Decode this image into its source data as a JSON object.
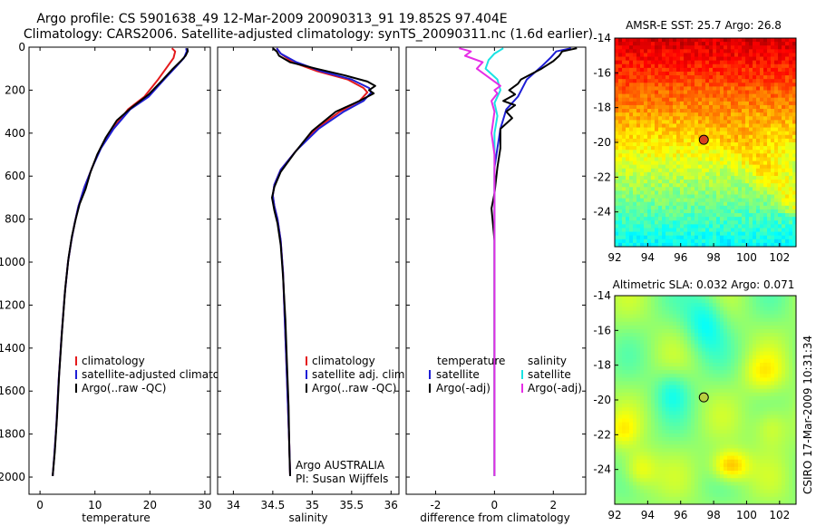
{
  "header": {
    "line1": "Argo profile: CS 5901638_49 12-Mar-2009 20090313_91 19.852S 97.404E",
    "line2": "Climatology: CARS2006. Satellite-adjusted climatology: synTS_20090311.nc (1.6d earlier)"
  },
  "depth_axis": {
    "ticks": [
      "0",
      "200",
      "400",
      "600",
      "800",
      "1000",
      "1200",
      "1400",
      "1600",
      "1800",
      "2000"
    ]
  },
  "colors": {
    "climatology": "#e41a1c",
    "satellite": "#1f1fd6",
    "argo": "#000000",
    "sal_satellite": "#19e3e3",
    "sal_argo": "#e62ee6"
  },
  "chart_data": [
    {
      "type": "line",
      "id": "temperature",
      "xlabel": "temperature",
      "xlim": [
        -2,
        31
      ],
      "ylim": [
        0,
        2080
      ],
      "xticks": [
        "0",
        "10",
        "20",
        "30"
      ],
      "legend": {
        "items": [
          "climatology",
          "satellite-adjusted climatology",
          "Argo(..raw -QC)"
        ]
      },
      "series": [
        {
          "name": "climatology",
          "color_key": "climatology",
          "points": [
            [
              24.0,
              5
            ],
            [
              24.6,
              20
            ],
            [
              24.3,
              50
            ],
            [
              23.2,
              90
            ],
            [
              21.5,
              150
            ],
            [
              19.0,
              230
            ],
            [
              16.0,
              290
            ],
            [
              13.2,
              380
            ],
            [
              11.0,
              470
            ],
            [
              9.5,
              560
            ],
            [
              8.1,
              650
            ],
            [
              7.0,
              740
            ],
            [
              6.3,
              820
            ],
            [
              5.7,
              900
            ],
            [
              5.1,
              1000
            ],
            [
              4.5,
              1150
            ],
            [
              3.9,
              1350
            ],
            [
              3.4,
              1550
            ],
            [
              3.0,
              1750
            ],
            [
              2.6,
              1900
            ],
            [
              2.3,
              1995
            ]
          ]
        },
        {
          "name": "satellite-adjusted climatology",
          "color_key": "satellite",
          "points": [
            [
              26.6,
              5
            ],
            [
              26.7,
              20
            ],
            [
              26.2,
              50
            ],
            [
              24.8,
              90
            ],
            [
              22.6,
              150
            ],
            [
              19.8,
              230
            ],
            [
              16.4,
              290
            ],
            [
              13.4,
              380
            ],
            [
              11.1,
              470
            ],
            [
              9.5,
              560
            ],
            [
              8.1,
              650
            ],
            [
              7.0,
              740
            ],
            [
              6.3,
              820
            ],
            [
              5.7,
              900
            ],
            [
              5.1,
              1000
            ],
            [
              4.5,
              1150
            ],
            [
              3.9,
              1350
            ],
            [
              3.4,
              1550
            ],
            [
              3.0,
              1750
            ],
            [
              2.6,
              1900
            ],
            [
              2.3,
              1995
            ]
          ]
        },
        {
          "name": "Argo(..raw -QC)",
          "color_key": "argo",
          "points": [
            [
              26.8,
              5
            ],
            [
              26.9,
              18
            ],
            [
              26.5,
              40
            ],
            [
              25.6,
              65
            ],
            [
              24.2,
              100
            ],
            [
              22.4,
              150
            ],
            [
              19.8,
              220
            ],
            [
              16.7,
              280
            ],
            [
              14.0,
              340
            ],
            [
              12.0,
              420
            ],
            [
              10.4,
              500
            ],
            [
              9.2,
              580
            ],
            [
              8.3,
              660
            ],
            [
              7.2,
              730
            ],
            [
              6.5,
              800
            ],
            [
              5.8,
              880
            ],
            [
              5.2,
              980
            ],
            [
              4.6,
              1120
            ],
            [
              4.0,
              1320
            ],
            [
              3.5,
              1520
            ],
            [
              3.1,
              1720
            ],
            [
              2.7,
              1880
            ],
            [
              2.3,
              1995
            ]
          ]
        }
      ]
    },
    {
      "type": "line",
      "id": "salinity",
      "xlabel": "salinity",
      "xlim": [
        33.8,
        36.1
      ],
      "ylim": [
        0,
        2080
      ],
      "xticks": [
        "34",
        "34.5",
        "35",
        "35.5",
        "36"
      ],
      "legend": {
        "items": [
          "climatology",
          "satellite adj. clim.",
          "Argo(..raw -QC)"
        ]
      },
      "annotation": [
        "Argo AUSTRALIA",
        "PI: Susan Wijffels"
      ],
      "series": [
        {
          "name": "climatology",
          "color_key": "climatology",
          "points": [
            [
              34.55,
              5
            ],
            [
              34.6,
              30
            ],
            [
              34.75,
              70
            ],
            [
              35.05,
              110
            ],
            [
              35.45,
              150
            ],
            [
              35.65,
              190
            ],
            [
              35.7,
              210
            ],
            [
              35.6,
              250
            ],
            [
              35.35,
              300
            ],
            [
              35.05,
              380
            ],
            [
              34.8,
              480
            ],
            [
              34.6,
              570
            ],
            [
              34.52,
              640
            ],
            [
              34.5,
              690
            ],
            [
              34.52,
              740
            ],
            [
              34.56,
              800
            ],
            [
              34.6,
              900
            ],
            [
              34.63,
              1050
            ],
            [
              34.65,
              1250
            ],
            [
              34.67,
              1450
            ],
            [
              34.69,
              1650
            ],
            [
              34.71,
              1850
            ],
            [
              34.72,
              1995
            ]
          ]
        },
        {
          "name": "satellite adj. clim.",
          "color_key": "satellite",
          "points": [
            [
              34.55,
              5
            ],
            [
              34.6,
              30
            ],
            [
              34.8,
              70
            ],
            [
              35.1,
              110
            ],
            [
              35.5,
              150
            ],
            [
              35.72,
              190
            ],
            [
              35.75,
              210
            ],
            [
              35.65,
              250
            ],
            [
              35.4,
              300
            ],
            [
              35.08,
              380
            ],
            [
              34.8,
              480
            ],
            [
              34.6,
              570
            ],
            [
              34.52,
              640
            ],
            [
              34.5,
              690
            ],
            [
              34.52,
              740
            ],
            [
              34.56,
              800
            ],
            [
              34.6,
              900
            ],
            [
              34.63,
              1050
            ],
            [
              34.65,
              1250
            ],
            [
              34.67,
              1450
            ],
            [
              34.69,
              1650
            ],
            [
              34.71,
              1850
            ],
            [
              34.72,
              1995
            ]
          ]
        },
        {
          "name": "Argo(..raw -QC)",
          "color_key": "argo",
          "points": [
            [
              34.5,
              5
            ],
            [
              34.55,
              20
            ],
            [
              34.58,
              40
            ],
            [
              34.72,
              70
            ],
            [
              35.05,
              100
            ],
            [
              35.4,
              130
            ],
            [
              35.7,
              160
            ],
            [
              35.8,
              180
            ],
            [
              35.72,
              200
            ],
            [
              35.78,
              215
            ],
            [
              35.6,
              250
            ],
            [
              35.3,
              300
            ],
            [
              35.0,
              390
            ],
            [
              34.78,
              490
            ],
            [
              34.6,
              580
            ],
            [
              34.52,
              650
            ],
            [
              34.49,
              700
            ],
            [
              34.52,
              760
            ],
            [
              34.56,
              820
            ],
            [
              34.6,
              920
            ],
            [
              34.63,
              1070
            ],
            [
              34.66,
              1270
            ],
            [
              34.68,
              1470
            ],
            [
              34.7,
              1670
            ],
            [
              34.71,
              1870
            ],
            [
              34.72,
              1995
            ]
          ]
        }
      ]
    },
    {
      "type": "line",
      "id": "difference",
      "xlabel": "difference from climatology",
      "xlim": [
        -3,
        3.1
      ],
      "ylim": [
        0,
        2080
      ],
      "xticks": [
        "-2",
        "0",
        "2"
      ],
      "legend": {
        "temperature_heading": "temperature",
        "salinity_heading": "salinity",
        "temperature_items": [
          "satellite",
          "Argo(-adj)"
        ],
        "salinity_items": [
          "satellite",
          "Argo(-adj)"
        ]
      },
      "series": [
        {
          "name": "temperature satellite",
          "color_key": "satellite",
          "points": [
            [
              2.6,
              5
            ],
            [
              2.1,
              20
            ],
            [
              1.9,
              50
            ],
            [
              1.6,
              90
            ],
            [
              1.1,
              150
            ],
            [
              0.8,
              230
            ],
            [
              0.4,
              290
            ],
            [
              0.2,
              380
            ],
            [
              0.1,
              470
            ],
            [
              0.0,
              560
            ],
            [
              0.0,
              700
            ],
            [
              0.0,
              1000
            ],
            [
              0.0,
              1500
            ],
            [
              0.0,
              1995
            ]
          ]
        },
        {
          "name": "temperature Argo(-adj)",
          "color_key": "argo",
          "points": [
            [
              2.8,
              5
            ],
            [
              2.3,
              20
            ],
            [
              2.2,
              40
            ],
            [
              2.0,
              65
            ],
            [
              1.6,
              100
            ],
            [
              0.9,
              150
            ],
            [
              0.8,
              170
            ],
            [
              0.5,
              200
            ],
            [
              0.7,
              220
            ],
            [
              0.3,
              250
            ],
            [
              0.7,
              270
            ],
            [
              0.4,
              300
            ],
            [
              0.6,
              330
            ],
            [
              0.2,
              380
            ],
            [
              0.2,
              470
            ],
            [
              0.1,
              560
            ],
            [
              0.0,
              680
            ],
            [
              -0.1,
              750
            ],
            [
              0.0,
              900
            ],
            [
              0.0,
              1200
            ],
            [
              0.0,
              1600
            ],
            [
              0.0,
              1995
            ]
          ]
        },
        {
          "name": "salinity satellite",
          "color_key": "sal_satellite",
          "points": [
            [
              0.3,
              5
            ],
            [
              0.0,
              30
            ],
            [
              -0.2,
              60
            ],
            [
              -0.3,
              100
            ],
            [
              0.1,
              150
            ],
            [
              0.2,
              200
            ],
            [
              0.0,
              260
            ],
            [
              0.1,
              320
            ],
            [
              0.0,
              400
            ],
            [
              0.0,
              600
            ],
            [
              0.0,
              1000
            ],
            [
              0.0,
              1500
            ],
            [
              0.0,
              1995
            ]
          ]
        },
        {
          "name": "salinity Argo(-adj)",
          "color_key": "sal_argo",
          "points": [
            [
              -1.2,
              5
            ],
            [
              -0.8,
              20
            ],
            [
              -1.0,
              40
            ],
            [
              -0.4,
              70
            ],
            [
              -0.6,
              100
            ],
            [
              -0.3,
              130
            ],
            [
              0.0,
              160
            ],
            [
              0.2,
              180
            ],
            [
              0.0,
              200
            ],
            [
              0.1,
              215
            ],
            [
              -0.1,
              250
            ],
            [
              0.0,
              300
            ],
            [
              -0.1,
              400
            ],
            [
              0.0,
              500
            ],
            [
              0.0,
              700
            ],
            [
              0.0,
              1000
            ],
            [
              0.0,
              1500
            ],
            [
              0.0,
              1995
            ]
          ]
        }
      ]
    },
    {
      "type": "heatmap",
      "id": "sst",
      "title": "AMSR-E SST: 25.7  Argo: 26.8",
      "xlim": [
        92,
        103
      ],
      "ylim": [
        -26,
        -14
      ],
      "xticks": [
        "92",
        "94",
        "96",
        "98",
        "100",
        "102"
      ],
      "yticks": [
        "-14",
        "-16",
        "-18",
        "-20",
        "-22",
        "-24"
      ],
      "marker": {
        "lon": 97.404,
        "lat": -19.852
      }
    },
    {
      "type": "heatmap",
      "id": "sla",
      "title": "Altimetric SLA: 0.032  Argo: 0.071",
      "xlim": [
        92,
        103
      ],
      "ylim": [
        -26,
        -14
      ],
      "xticks": [
        "92",
        "94",
        "96",
        "98",
        "100",
        "102"
      ],
      "yticks": [
        "-14",
        "-16",
        "-18",
        "-20",
        "-22",
        "-24"
      ],
      "marker": {
        "lon": 97.404,
        "lat": -19.852
      }
    }
  ],
  "footer": {
    "credit": "CSIRO 17-Mar-2009 10:31:34"
  }
}
